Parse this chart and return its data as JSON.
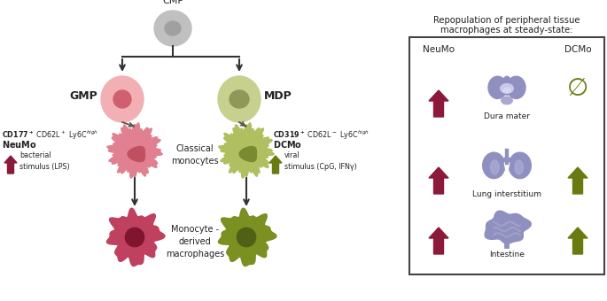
{
  "bg_color": "#ffffff",
  "arrow_color": "#333333",
  "dashed_color": "#555555",
  "neumo_color": "#8b1a3a",
  "dcmo_color": "#6b7a10",
  "box_border": "#444444",
  "organ_color": "#9090c0",
  "organ_dark": "#7070a8",
  "repop_line1": "Repopulation of peripheral tissue",
  "repop_line2": "macrophages at steady-state:",
  "neumo_header": "NeuMo",
  "dcmo_header": "DCMo",
  "dura_label": "Dura mater",
  "lung_label": "Lung interstitium",
  "intestine_label": "Intestine",
  "cmp_label": "CMP",
  "gmp_label": "GMP",
  "mdp_label": "MDP",
  "classical_label": "Classical\nmonocytes",
  "monocyte_derived_label": "Monocyte -\nderived\nmacrophages",
  "cmp_outer": "#c0c0c0",
  "cmp_inner": "#a0a0a0",
  "gmp_outer": "#f2b0b5",
  "gmp_inner": "#d06070",
  "mdp_outer": "#c8d090",
  "mdp_inner": "#909858",
  "neumo_outer": "#e08090",
  "neumo_inner": "#c05060",
  "dcmo_outer": "#b0c060",
  "dcmo_inner": "#7a8a30",
  "macro_pink_outer": "#c04060",
  "macro_pink_inner": "#801530",
  "macro_green_outer": "#7a9020",
  "macro_green_inner": "#506015"
}
